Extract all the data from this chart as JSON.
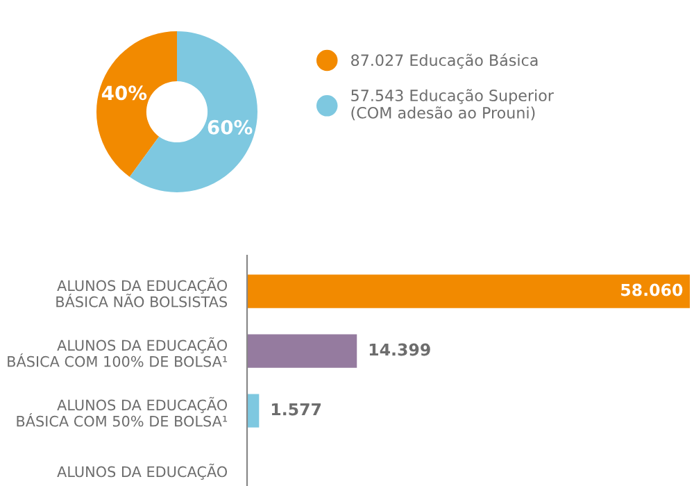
{
  "chart_data": [
    {
      "type": "donut",
      "categories": [
        "87.027 Educação Básica",
        "57.543 Educação Superior\n(COM adesão ao Prouni)"
      ],
      "values": [
        40,
        60
      ],
      "colors": [
        "#f28a00",
        "#7ec8e0"
      ],
      "value_labels": [
        "40%",
        "60%"
      ],
      "legend": "right"
    },
    {
      "type": "bar",
      "orientation": "horizontal",
      "categories": [
        "ALUNOS DA EDUCAÇÃO\nBÁSICA NÃO BOLSISTAS",
        "ALUNOS DA EDUCAÇÃO\nBÁSICA COM 100% DE BOLSA¹",
        "ALUNOS DA EDUCAÇÃO\nBÁSICA COM 50% DE BOLSA¹",
        "ALUNOS DA EDUCAÇÃO"
      ],
      "values": [
        58060,
        14399,
        1577,
        null
      ],
      "colors": [
        "#f28a00",
        "#957b9f",
        "#7ec8e0",
        "#7ec8e0"
      ],
      "value_labels": [
        "58.060",
        "14.399",
        "1.577",
        null
      ]
    }
  ]
}
